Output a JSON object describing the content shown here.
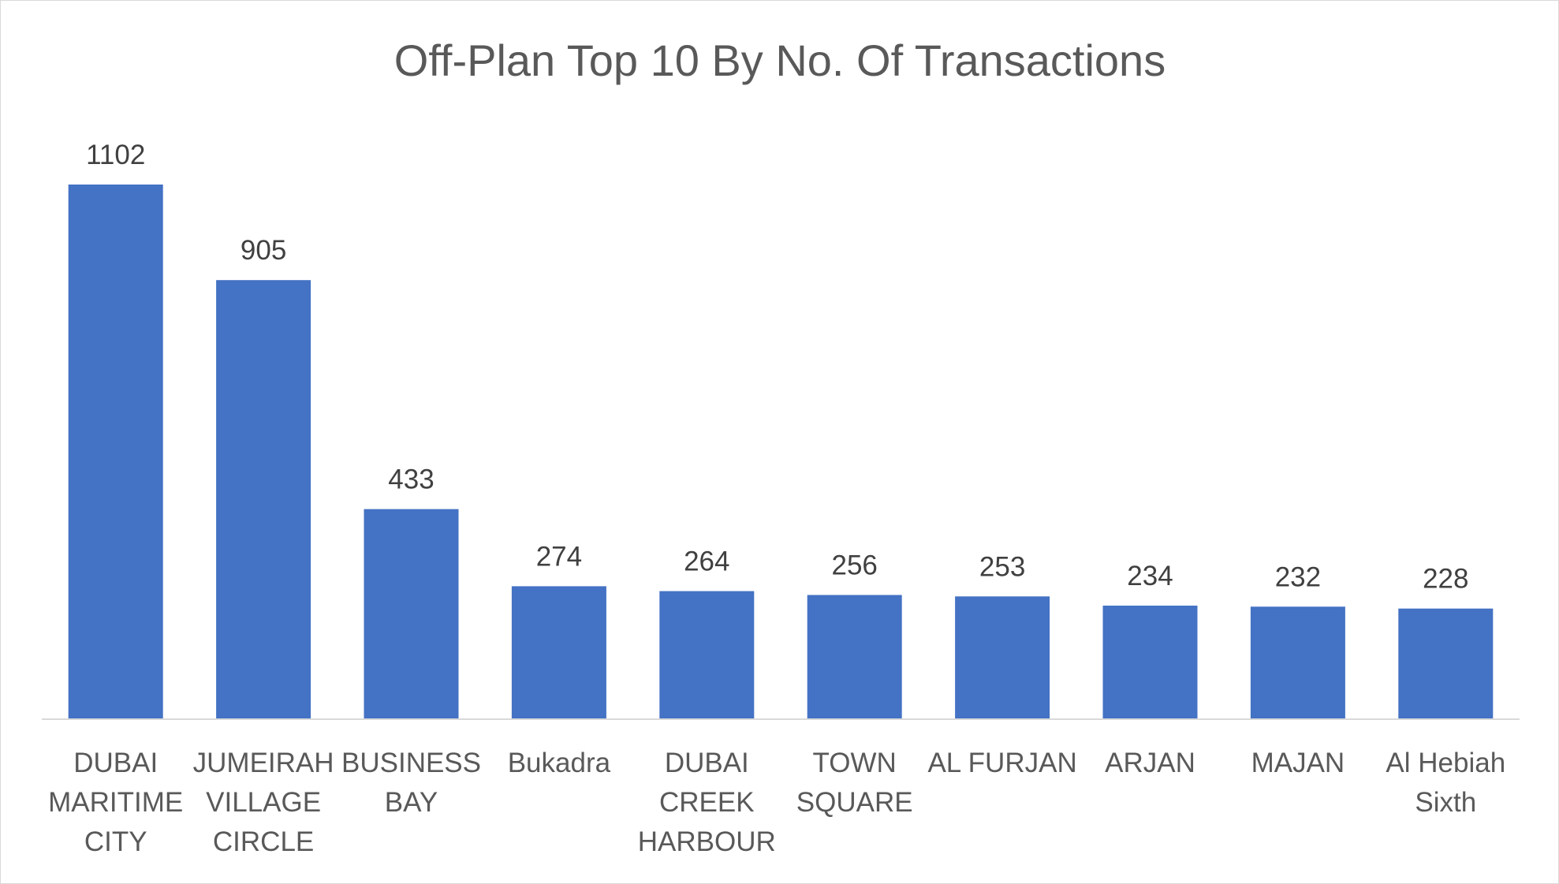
{
  "chart_data": {
    "type": "bar",
    "title": "Off-Plan Top 10 By No. Of Transactions",
    "xlabel": "",
    "ylabel": "",
    "categories": [
      [
        "DUBAI",
        "MARITIME",
        "CITY"
      ],
      [
        "JUMEIRAH",
        "VILLAGE",
        "CIRCLE"
      ],
      [
        "BUSINESS",
        "BAY"
      ],
      [
        "Bukadra"
      ],
      [
        "DUBAI",
        "CREEK",
        "HARBOUR"
      ],
      [
        "TOWN",
        "SQUARE"
      ],
      [
        "AL FURJAN"
      ],
      [
        "ARJAN"
      ],
      [
        "MAJAN"
      ],
      [
        "Al Hebiah",
        "Sixth"
      ]
    ],
    "values": [
      1102,
      905,
      433,
      274,
      264,
      256,
      253,
      234,
      232,
      228
    ],
    "ylim": [
      0,
      1102
    ],
    "grid": false,
    "legend": "none",
    "data_labels": true,
    "bar_color": "#4472C4",
    "axis_color": "#d9d9d9"
  }
}
